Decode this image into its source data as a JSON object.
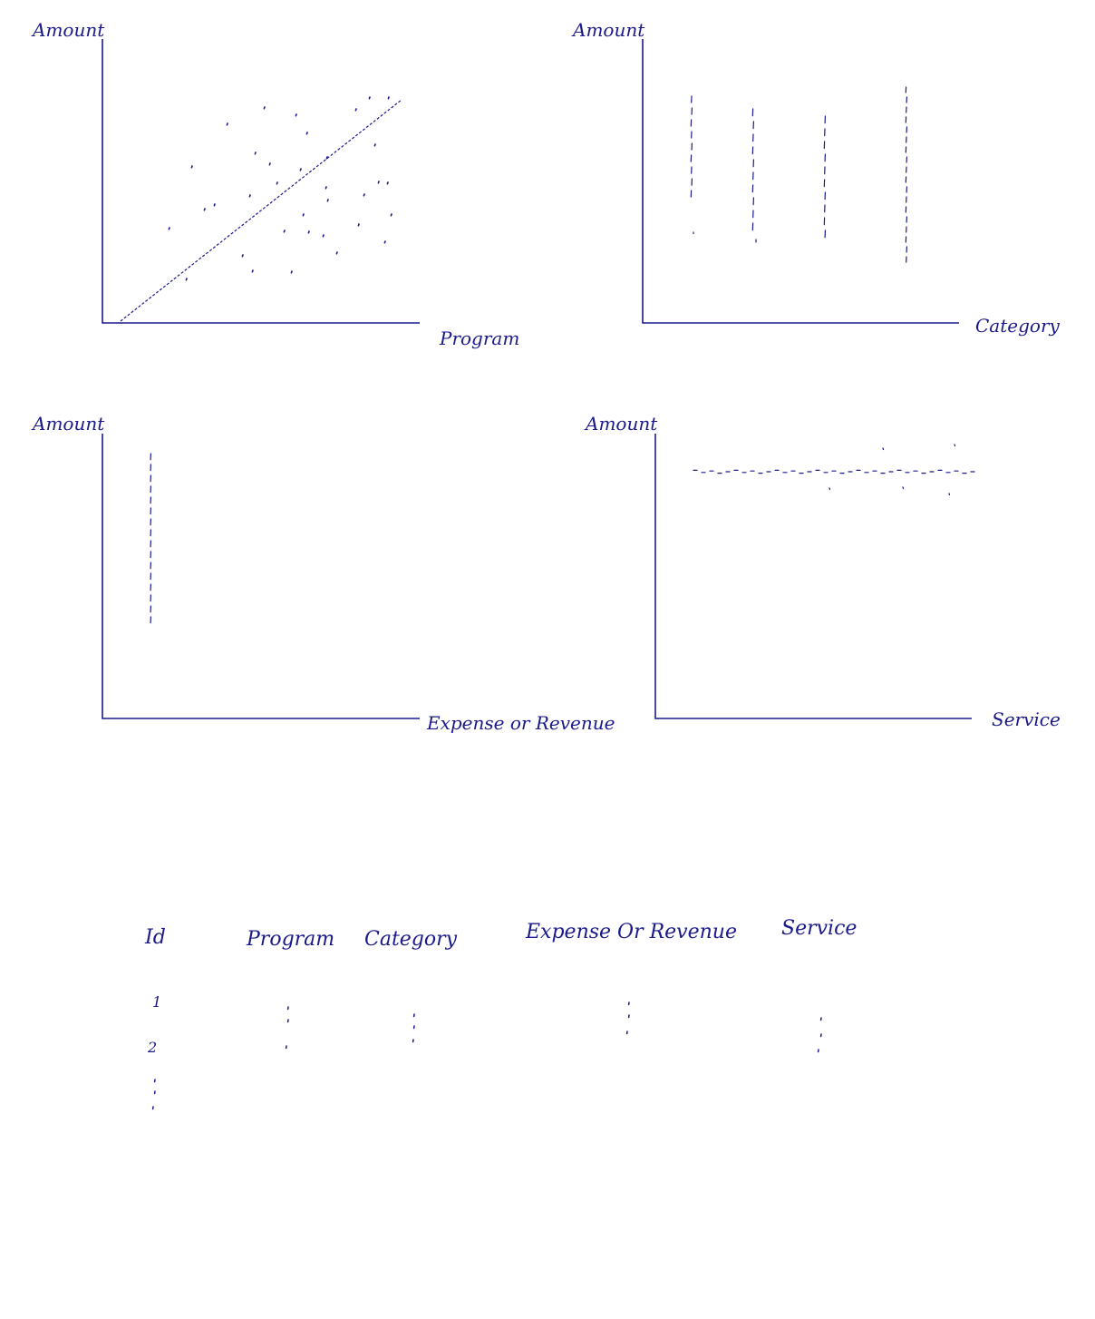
{
  "colors": {
    "ink": "#1a1a8c",
    "background": "#ffffff"
  },
  "charts": [
    {
      "id": "amount-vs-program",
      "kind": "scatter-with-trend",
      "ylabel": "Amount",
      "xlabel": "Program"
    },
    {
      "id": "amount-vs-category",
      "kind": "strip",
      "ylabel": "Amount",
      "xlabel": "Category"
    },
    {
      "id": "amount-vs-expense-or-revenue",
      "kind": "strip",
      "ylabel": "Amount",
      "xlabel": "Expense or Revenue"
    },
    {
      "id": "amount-vs-service",
      "kind": "strip",
      "ylabel": "Amount",
      "xlabel": "Service"
    }
  ],
  "table": {
    "headers": [
      "Id",
      "Program",
      "Category",
      "Expense Or Revenue",
      "Service"
    ],
    "row_ids": [
      "1",
      "2"
    ]
  }
}
